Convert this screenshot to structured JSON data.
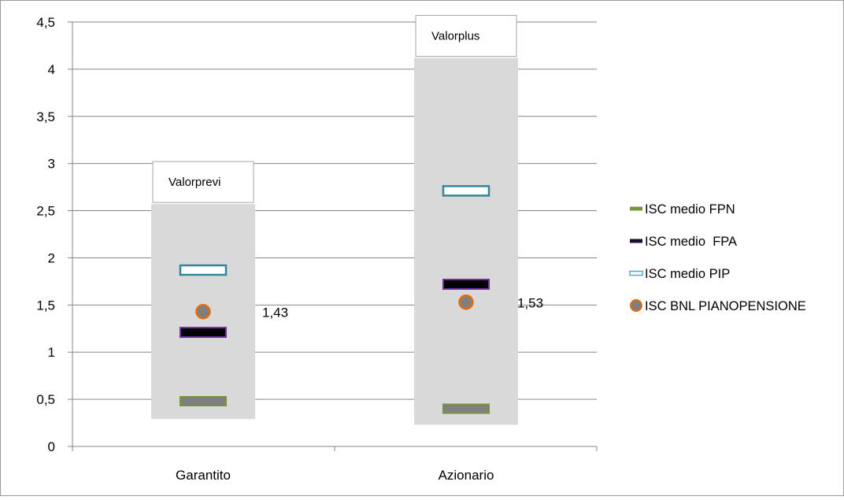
{
  "chart_data": {
    "type": "scatter",
    "categories": [
      "Garantito",
      "Azionario"
    ],
    "ylim": [
      0,
      4.5
    ],
    "yticks": [
      "0",
      "0,5",
      "1",
      "1,5",
      "2",
      "2,5",
      "3",
      "3,5",
      "4",
      "4,5"
    ],
    "ytick_values": [
      0,
      0.5,
      1,
      1.5,
      2,
      2.5,
      3,
      3.5,
      4,
      4.5
    ],
    "grid": true,
    "legend_position": "right",
    "range_bands": [
      {
        "category": "Garantito",
        "low": 0.29,
        "high": 2.57,
        "label": "Valorprevi"
      },
      {
        "category": "Azionario",
        "low": 0.23,
        "high": 4.12,
        "label": "Valorplus"
      }
    ],
    "series": [
      {
        "name": "ISC medio FPN",
        "marker": "bar-dash",
        "values": [
          0.48,
          0.4
        ]
      },
      {
        "name": "ISC medio  FPA",
        "marker": "bar-dash",
        "values": [
          1.21,
          1.72
        ]
      },
      {
        "name": "ISC medio PIP",
        "marker": "bar-dash-hollow",
        "values": [
          1.87,
          2.71
        ]
      },
      {
        "name": "ISC BNL PIANOPENSIONE",
        "marker": "circle",
        "values": [
          1.43,
          1.53
        ]
      }
    ],
    "data_labels": [
      "1,43",
      "1,53"
    ]
  },
  "colors": {
    "band": "#d9d9d9",
    "grid": "#868686",
    "fpn_fill": "#7f7f7f",
    "fpn_border": "#77933c",
    "fpa_fill": "#000000",
    "fpa_border": "#7030a0",
    "pip_fill": "#ffffff",
    "pip_border": "#31859c",
    "bnl_fill": "#7f7f7f",
    "bnl_border": "#e46c0a",
    "legend_fpn": "#77933c",
    "legend_fpa": "#1f0f2f",
    "legend_pip": "#4bacc6"
  }
}
